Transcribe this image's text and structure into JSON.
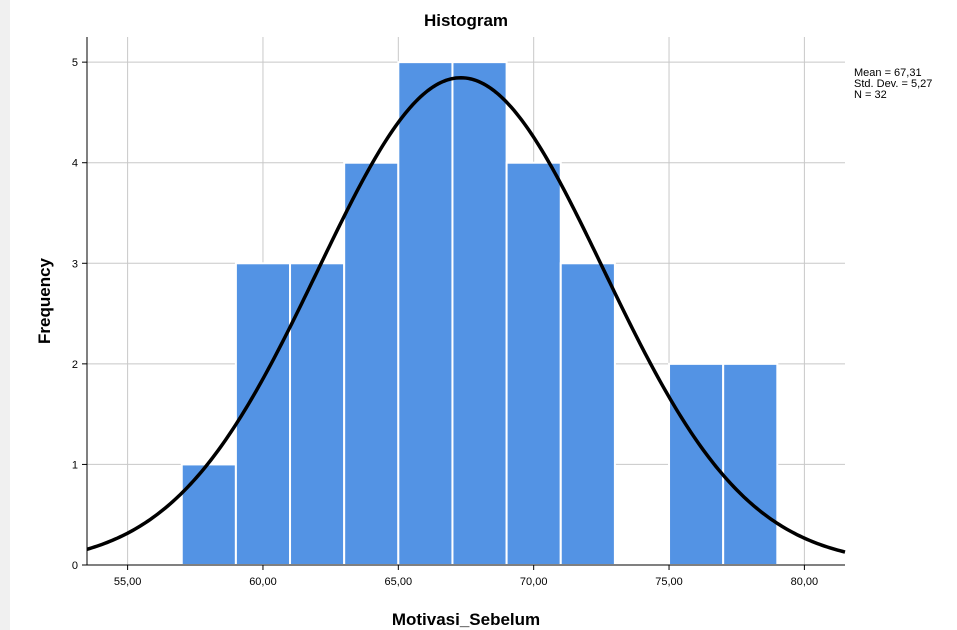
{
  "chart_data": {
    "type": "bar",
    "title": "Histogram",
    "xlabel": "Motivasi_Sebelum",
    "ylabel": "Frequency",
    "xlim": [
      53.5,
      81.5
    ],
    "ylim": [
      0,
      5.25
    ],
    "x_ticks": [
      55,
      60,
      65,
      70,
      75,
      80
    ],
    "x_tick_labels": [
      "55,00",
      "60,00",
      "65,00",
      "70,00",
      "75,00",
      "80,00"
    ],
    "y_ticks": [
      0,
      1,
      2,
      3,
      4,
      5
    ],
    "y_tick_labels": [
      "0",
      "1",
      "2",
      "3",
      "4",
      "5"
    ],
    "grid": true,
    "bins": [
      {
        "x0": 57.0,
        "x1": 59.0,
        "value": 1
      },
      {
        "x0": 59.0,
        "x1": 61.0,
        "value": 3
      },
      {
        "x0": 61.0,
        "x1": 63.0,
        "value": 3
      },
      {
        "x0": 63.0,
        "x1": 65.0,
        "value": 4
      },
      {
        "x0": 65.0,
        "x1": 67.0,
        "value": 5
      },
      {
        "x0": 67.0,
        "x1": 69.0,
        "value": 5
      },
      {
        "x0": 69.0,
        "x1": 71.0,
        "value": 4
      },
      {
        "x0": 71.0,
        "x1": 73.0,
        "value": 3
      },
      {
        "x0": 75.0,
        "x1": 77.0,
        "value": 2
      },
      {
        "x0": 77.0,
        "x1": 79.0,
        "value": 2
      }
    ],
    "normal_curve": {
      "mean": 67.31,
      "std_dev": 5.27,
      "n": 32,
      "bin_width": 2
    },
    "stats_lines": [
      "Mean = 67,31",
      "Std. Dev. = 5,27",
      "N = 32"
    ],
    "colors": {
      "bar": "#5393e4",
      "curve": "#000000",
      "grid": "#c8c8c8"
    }
  }
}
